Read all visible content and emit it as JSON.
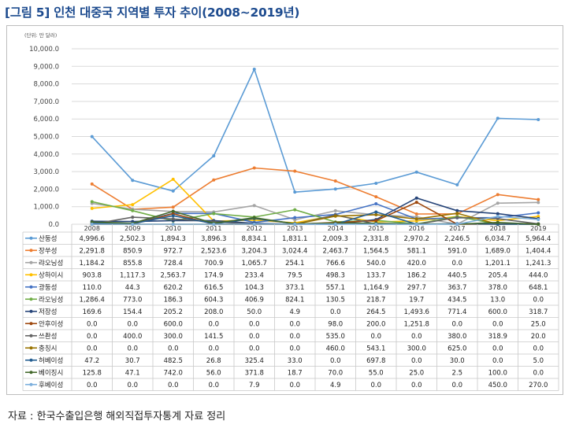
{
  "figure": {
    "title": "[그림 5] 인천 대중국 지역별 투자 추이(2008~2019년)",
    "caption": "자료 : 한국수출입은행 해외직접투자통계 자료 정리"
  },
  "chart_data": {
    "type": "line",
    "unit_label": "(단위: 만 달러)",
    "ylim": [
      0,
      10000
    ],
    "y_ticks": [
      "0.0",
      "1,000.0",
      "2,000.0",
      "3,000.0",
      "4,000.0",
      "5,000.0",
      "6,000.0",
      "7,000.0",
      "8,000.0",
      "9,000.0",
      "10,000.0"
    ],
    "y_tick_values": [
      0,
      1000,
      2000,
      3000,
      4000,
      5000,
      6000,
      7000,
      8000,
      9000,
      10000
    ],
    "grid": true,
    "legend": "table-below",
    "categories": [
      "2008",
      "2009",
      "2010",
      "2011",
      "2012",
      "2013",
      "2014",
      "2015",
      "2016",
      "2017",
      "2018",
      "2019"
    ],
    "series": [
      {
        "name": "산둥성",
        "color": "#5b9bd5",
        "values": [
          4996.6,
          2502.3,
          1894.3,
          3896.3,
          8834.1,
          1831.1,
          2009.3,
          2331.8,
          2970.2,
          2246.5,
          6034.7,
          5964.4
        ],
        "labels": [
          "4,996.6",
          "2,502.3",
          "1,894.3",
          "3,896.3",
          "8,834.1",
          "1,831.1",
          "2,009.3",
          "2,331.8",
          "2,970.2",
          "2,246.5",
          "6,034.7",
          "5,964.4"
        ]
      },
      {
        "name": "장쑤성",
        "color": "#ed7d31",
        "values": [
          2291.8,
          850.9,
          972.7,
          2523.6,
          3204.3,
          3024.4,
          2463.7,
          1564.5,
          581.1,
          591.0,
          1689.0,
          1404.4
        ],
        "labels": [
          "2,291.8",
          "850.9",
          "972.7",
          "2,523.6",
          "3,204.3",
          "3,024.4",
          "2,463.7",
          "1,564.5",
          "581.1",
          "591.0",
          "1,689.0",
          "1,404.4"
        ]
      },
      {
        "name": "랴오닝성",
        "color": "#a5a5a5",
        "values": [
          1184.2,
          855.8,
          728.4,
          700.9,
          1065.7,
          254.1,
          766.6,
          540.0,
          420.0,
          0.0,
          1201.1,
          1241.3
        ],
        "labels": [
          "1,184.2",
          "855.8",
          "728.4",
          "700.9",
          "1,065.7",
          "254.1",
          "766.6",
          "540.0",
          "420.0",
          "0.0",
          "1,201.1",
          "1,241.3"
        ]
      },
      {
        "name": "상하이시",
        "color": "#ffc000",
        "values": [
          903.8,
          1117.3,
          2563.7,
          174.9,
          233.4,
          79.5,
          498.3,
          133.7,
          186.2,
          440.5,
          205.4,
          444.0
        ],
        "labels": [
          "903.8",
          "1,117.3",
          "2,563.7",
          "174.9",
          "233.4",
          "79.5",
          "498.3",
          "133.7",
          "186.2",
          "440.5",
          "205.4",
          "444.0"
        ]
      },
      {
        "name": "광둥성",
        "color": "#4472c4",
        "values": [
          110.0,
          44.3,
          620.2,
          616.5,
          104.3,
          373.1,
          557.1,
          1164.9,
          297.7,
          363.7,
          378.0,
          648.1
        ],
        "labels": [
          "110.0",
          "44.3",
          "620.2",
          "616.5",
          "104.3",
          "373.1",
          "557.1",
          "1,164.9",
          "297.7",
          "363.7",
          "378.0",
          "648.1"
        ]
      },
      {
        "name": "라오닝성",
        "color": "#70ad47",
        "values": [
          1286.4,
          773.0,
          186.3,
          604.3,
          406.9,
          824.1,
          130.5,
          218.7,
          19.7,
          434.5,
          13.0,
          0.0
        ],
        "labels": [
          "1,286.4",
          "773.0",
          "186.3",
          "604.3",
          "406.9",
          "824.1",
          "130.5",
          "218.7",
          "19.7",
          "434.5",
          "13.0",
          "0.0"
        ]
      },
      {
        "name": "저장성",
        "color": "#264478",
        "values": [
          169.6,
          154.4,
          205.2,
          208.0,
          50.0,
          4.9,
          0.0,
          264.5,
          1493.6,
          771.4,
          600.0,
          318.7
        ],
        "labels": [
          "169.6",
          "154.4",
          "205.2",
          "208.0",
          "50.0",
          "4.9",
          "0.0",
          "264.5",
          "1,493.6",
          "771.4",
          "600.0",
          "318.7"
        ]
      },
      {
        "name": "안후이성",
        "color": "#9e480e",
        "values": [
          0.0,
          0.0,
          600.0,
          0.0,
          0.0,
          0.0,
          98.0,
          200.0,
          1251.8,
          0.0,
          0.0,
          25.0
        ],
        "labels": [
          "0.0",
          "0.0",
          "600.0",
          "0.0",
          "0.0",
          "0.0",
          "98.0",
          "200.0",
          "1,251.8",
          "0.0",
          "0.0",
          "25.0"
        ]
      },
      {
        "name": "쓰촨성",
        "color": "#636363",
        "values": [
          0.0,
          400.0,
          300.0,
          141.5,
          0.0,
          0.0,
          535.0,
          0.0,
          0.0,
          380.0,
          318.9,
          20.0
        ],
        "labels": [
          "0.0",
          "400.0",
          "300.0",
          "141.5",
          "0.0",
          "0.0",
          "535.0",
          "0.0",
          "0.0",
          "380.0",
          "318.9",
          "20.0"
        ]
      },
      {
        "name": "충칭시",
        "color": "#997300",
        "values": [
          0.0,
          0.0,
          0.0,
          0.0,
          0.0,
          0.0,
          460.0,
          543.1,
          300.0,
          625.0,
          0.0,
          0.0
        ],
        "labels": [
          "0.0",
          "0.0",
          "0.0",
          "0.0",
          "0.0",
          "0.0",
          "460.0",
          "543.1",
          "300.0",
          "625.0",
          "0.0",
          "0.0"
        ]
      },
      {
        "name": "허베이성",
        "color": "#255e91",
        "values": [
          47.2,
          30.7,
          482.5,
          26.8,
          325.4,
          33.0,
          0.0,
          697.8,
          0.0,
          30.0,
          0.0,
          5.0
        ],
        "labels": [
          "47.2",
          "30.7",
          "482.5",
          "26.8",
          "325.4",
          "33.0",
          "0.0",
          "697.8",
          "0.0",
          "30.0",
          "0.0",
          "5.0"
        ]
      },
      {
        "name": "베이징시",
        "color": "#43682b",
        "values": [
          125.8,
          47.1,
          742.0,
          56.0,
          371.8,
          18.7,
          70.0,
          55.0,
          25.0,
          2.5,
          100.0,
          0.0
        ],
        "labels": [
          "125.8",
          "47.1",
          "742.0",
          "56.0",
          "371.8",
          "18.7",
          "70.0",
          "55.0",
          "25.0",
          "2.5",
          "100.0",
          "0.0"
        ]
      },
      {
        "name": "후베이성",
        "color": "#7cafdd",
        "values": [
          0.0,
          0.0,
          0.0,
          0.0,
          7.9,
          0.0,
          4.9,
          0.0,
          0.0,
          0.0,
          450.0,
          270.0
        ],
        "labels": [
          "0.0",
          "0.0",
          "0.0",
          "0.0",
          "7.9",
          "0.0",
          "4.9",
          "0.0",
          "0.0",
          "0.0",
          "450.0",
          "270.0"
        ]
      }
    ]
  }
}
